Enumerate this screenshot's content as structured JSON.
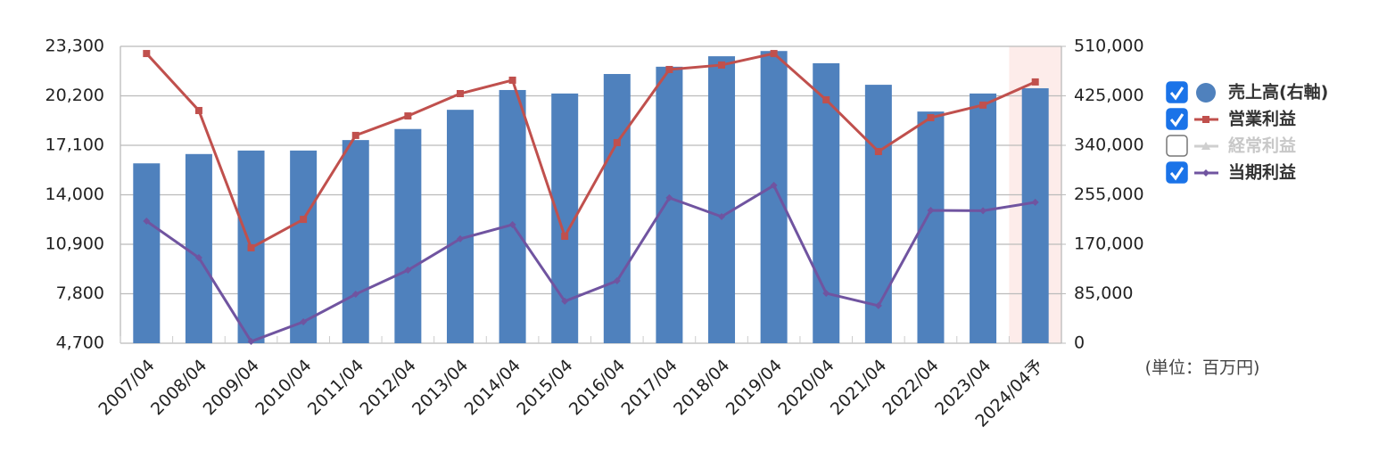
{
  "chart_data": {
    "type": "bar-line",
    "categories": [
      "2007/04",
      "2008/04",
      "2009/04",
      "2010/04",
      "2011/04",
      "2012/04",
      "2013/04",
      "2014/04",
      "2015/04",
      "2016/04",
      "2017/04",
      "2018/04",
      "2019/04",
      "2020/04",
      "2021/04",
      "2022/04",
      "2023/04",
      "2024/04予"
    ],
    "highlight_index": 17,
    "series": [
      {
        "name": "売上高(右軸)",
        "type": "bar",
        "axis": "y2",
        "color": "#4f81bd",
        "checked": true,
        "values": [
          309000,
          325000,
          331000,
          331000,
          349000,
          368000,
          401000,
          435000,
          429000,
          462500,
          475000,
          493000,
          502000,
          481000,
          444000,
          398000,
          429000,
          438000
        ]
      },
      {
        "name": "営業利益",
        "type": "line",
        "color": "#c0504d",
        "checked": true,
        "marker": "square",
        "values": [
          22850,
          19280,
          10680,
          12460,
          17720,
          18940,
          20340,
          21180,
          11400,
          17270,
          21850,
          22130,
          22850,
          19950,
          16710,
          18830,
          19620,
          21070
        ]
      },
      {
        "name": "経常利益",
        "type": "line",
        "color": "#bfbfbf",
        "checked": false,
        "marker": "triangle",
        "values": [
          null,
          null,
          null,
          null,
          null,
          null,
          null,
          null,
          null,
          null,
          null,
          null,
          null,
          null,
          null,
          null,
          null,
          null
        ]
      },
      {
        "name": "当期利益",
        "type": "line",
        "color": "#7054a0",
        "checked": true,
        "marker": "diamond",
        "values": [
          12350,
          10060,
          4810,
          6040,
          7770,
          9280,
          11240,
          12130,
          7330,
          8610,
          13810,
          12630,
          14590,
          7830,
          7050,
          13020,
          13000,
          13530
        ]
      }
    ],
    "ylim": [
      4700,
      23300
    ],
    "yticks": [
      {
        "value": 4700,
        "label": "4,700"
      },
      {
        "value": 7800,
        "label": "7,800"
      },
      {
        "value": 10900,
        "label": "10,900"
      },
      {
        "value": 14000,
        "label": "14,000"
      },
      {
        "value": 17100,
        "label": "17,100"
      },
      {
        "value": 20200,
        "label": "20,200"
      },
      {
        "value": 23300,
        "label": "23,300"
      }
    ],
    "y2lim": [
      0,
      510000
    ],
    "y2ticks": [
      0,
      {
        "value": 85000,
        "label": "85,000"
      },
      {
        "value": 170000,
        "label": "170,000"
      },
      {
        "value": 255000,
        "label": "255,000"
      },
      {
        "value": 340000,
        "label": "340,000"
      },
      {
        "value": 425000,
        "label": "425,000"
      },
      {
        "value": 510000,
        "label": "510,000"
      }
    ],
    "grid": true,
    "unit_note": "(単位：百万円)"
  }
}
